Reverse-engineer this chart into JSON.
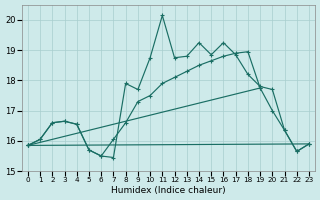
{
  "xlabel": "Humidex (Indice chaleur)",
  "xlim": [
    -0.5,
    23.5
  ],
  "ylim": [
    15.0,
    20.5
  ],
  "yticks": [
    15,
    16,
    17,
    18,
    19,
    20
  ],
  "xtick_labels": [
    "0",
    "1",
    "2",
    "3",
    "4",
    "5",
    "6",
    "7",
    "8",
    "9",
    "10",
    "11",
    "12",
    "13",
    "14",
    "15",
    "16",
    "17",
    "18",
    "19",
    "20",
    "21",
    "22",
    "23"
  ],
  "bg_color": "#ceeaea",
  "grid_color": "#a8cece",
  "line_color": "#1a6e64",
  "lines": [
    {
      "x": [
        0,
        1,
        2,
        3,
        4,
        5,
        6,
        7,
        8,
        9,
        10,
        11,
        12,
        13,
        14,
        15,
        16,
        17,
        18,
        19,
        20,
        21,
        22,
        23
      ],
      "y": [
        15.85,
        16.05,
        16.6,
        16.65,
        16.55,
        15.7,
        15.5,
        15.45,
        17.9,
        17.7,
        18.75,
        20.15,
        18.75,
        18.8,
        19.25,
        18.85,
        19.25,
        18.85,
        18.2,
        17.8,
        17.7,
        16.35,
        15.65,
        15.9
      ]
    },
    {
      "x": [
        0,
        1,
        2,
        3,
        4,
        5,
        6,
        7,
        8,
        9,
        10,
        11,
        12,
        13,
        14,
        15,
        16,
        17,
        18,
        19,
        20,
        21,
        22,
        23
      ],
      "y": [
        15.85,
        16.05,
        16.6,
        16.65,
        16.55,
        15.7,
        15.5,
        16.05,
        16.6,
        17.3,
        17.5,
        17.9,
        18.1,
        18.3,
        18.5,
        18.65,
        18.8,
        18.9,
        18.95,
        17.75,
        17.0,
        16.35,
        15.65,
        15.9
      ]
    },
    {
      "x": [
        0,
        23
      ],
      "y": [
        15.85,
        15.9
      ]
    },
    {
      "x": [
        0,
        19
      ],
      "y": [
        15.85,
        17.75
      ]
    }
  ]
}
